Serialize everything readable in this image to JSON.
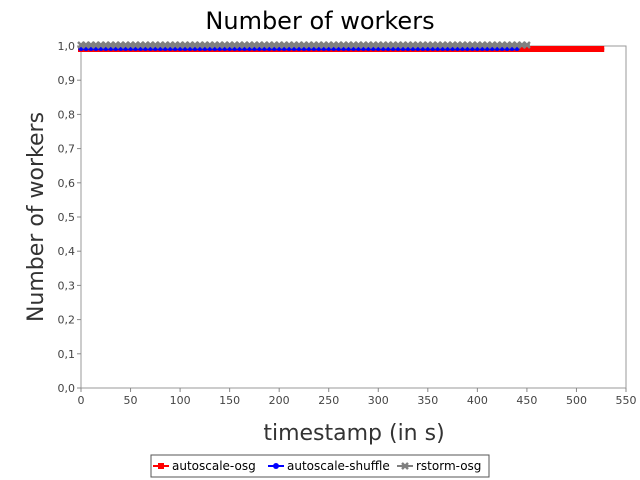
{
  "chart_data": {
    "type": "line",
    "title": "Number of workers",
    "xlabel": "timestamp (in s)",
    "ylabel": "Number of workers",
    "xlim": [
      0,
      550
    ],
    "ylim": [
      0,
      1.0
    ],
    "x_ticks": [
      "0",
      "50",
      "100",
      "150",
      "200",
      "250",
      "300",
      "350",
      "400",
      "450",
      "500",
      "550"
    ],
    "y_ticks": [
      "0,0",
      "0,1",
      "0,2",
      "0,3",
      "0,4",
      "0,5",
      "0,6",
      "0,7",
      "0,8",
      "0,9",
      "1,0"
    ],
    "grid": false,
    "legend_position": "bottom",
    "series": [
      {
        "name": "autoscale-osg",
        "color": "#ff0000",
        "marker": "square",
        "x_start": 0,
        "x_end": 528,
        "x_step": 5,
        "y": 1.0
      },
      {
        "name": "autoscale-shuffle",
        "color": "#0000ff",
        "marker": "circle",
        "x_start": 0,
        "x_end": 443,
        "x_step": 5,
        "y": 1.0
      },
      {
        "name": "rstorm-osg",
        "color": "#808080",
        "marker": "x",
        "x_start": 0,
        "x_end": 453,
        "x_step": 5,
        "y": 1.0
      }
    ]
  }
}
